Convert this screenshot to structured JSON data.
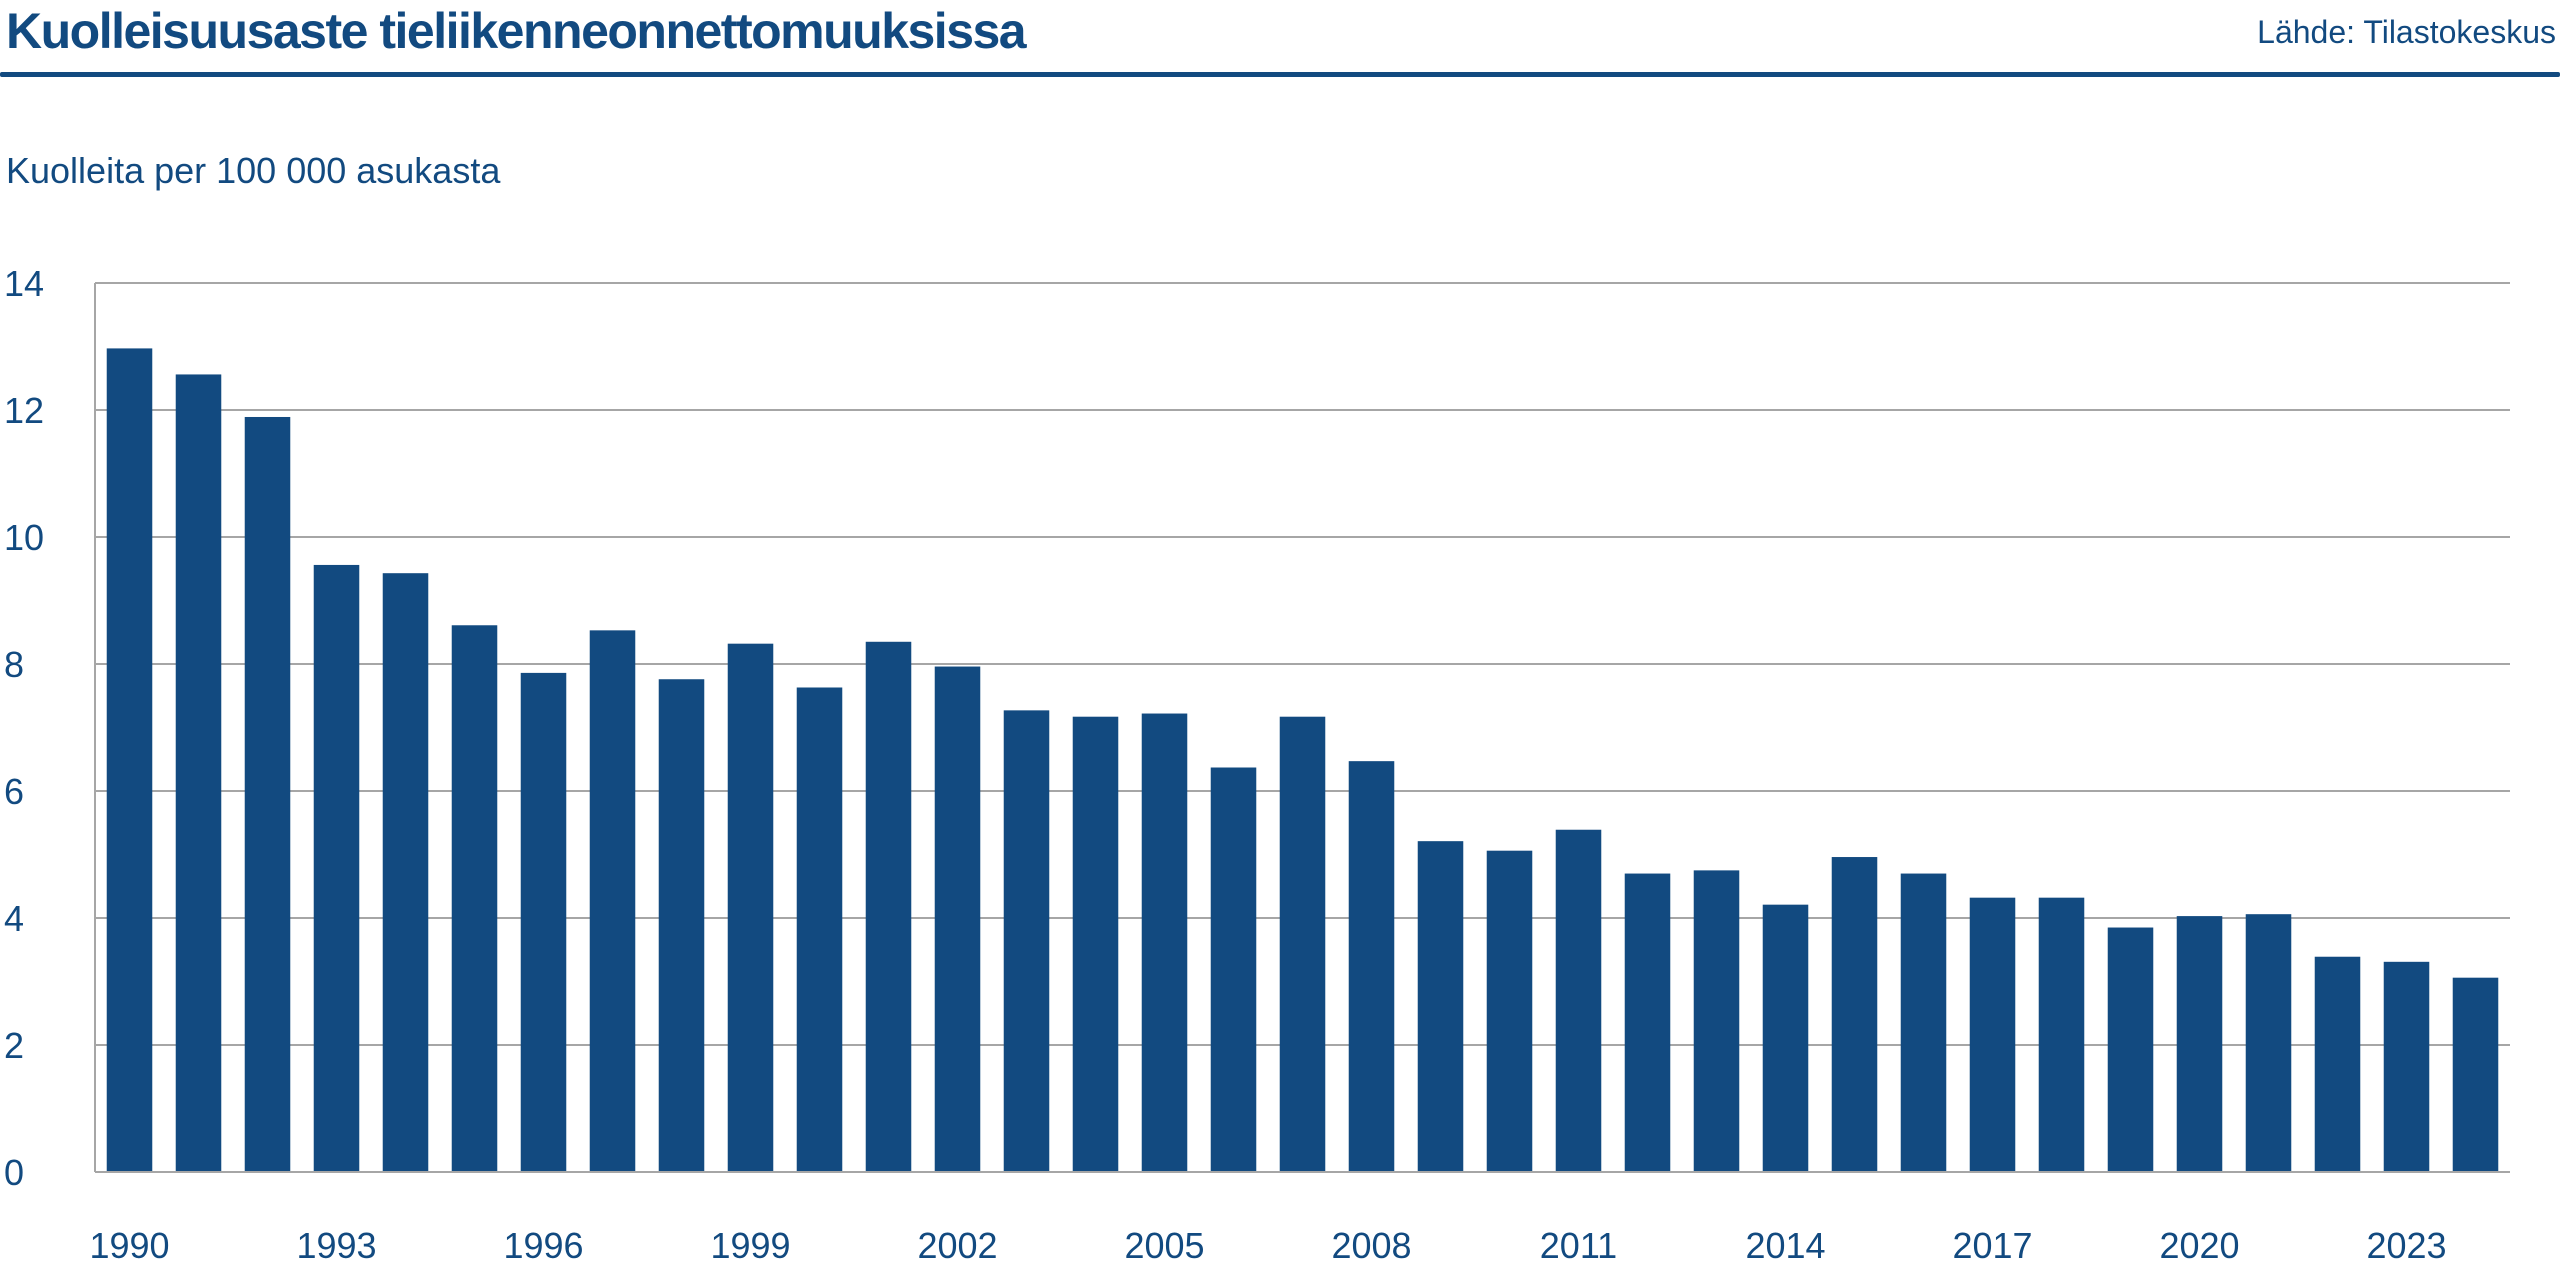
{
  "header": {
    "title": "Kuolleisuusaste tieliikenneonnettomuuksissa",
    "source": "Lähde: Tilastokeskus"
  },
  "colors": {
    "bar": "#124a80",
    "grid": "#a6a6a6",
    "text": "#124a80"
  },
  "chart_data": {
    "type": "bar",
    "title": "Kuolleisuusaste tieliikenneonnettomuuksissa",
    "ylabel": "Kuolleita per 100 000 asukasta",
    "xlabel": "",
    "ylim": [
      0,
      14
    ],
    "yticks": [
      0,
      2,
      4,
      6,
      8,
      10,
      12,
      14
    ],
    "grid": true,
    "categories": [
      "1990",
      "1991",
      "1992",
      "1993",
      "1994",
      "1995",
      "1996",
      "1997",
      "1998",
      "1999",
      "2000",
      "2001",
      "2002",
      "2003",
      "2004",
      "2005",
      "2006",
      "2007",
      "2008",
      "2009",
      "2010",
      "2011",
      "2012",
      "2013",
      "2014",
      "2015",
      "2016",
      "2017",
      "2018",
      "2019",
      "2020",
      "2021",
      "2022",
      "2023",
      "2024"
    ],
    "xtick_labels": [
      "1990",
      "1993",
      "1996",
      "1999",
      "2002",
      "2005",
      "2008",
      "2011",
      "2014",
      "2017",
      "2020",
      "2023"
    ],
    "values": [
      12.97,
      12.56,
      11.89,
      9.56,
      9.43,
      8.61,
      7.86,
      8.53,
      7.76,
      8.32,
      7.63,
      8.35,
      7.96,
      7.27,
      7.17,
      7.22,
      6.37,
      7.17,
      6.47,
      5.21,
      5.06,
      5.39,
      4.7,
      4.75,
      4.21,
      4.96,
      4.7,
      4.32,
      4.32,
      3.85,
      4.03,
      4.06,
      3.39,
      3.31,
      3.06
    ]
  }
}
